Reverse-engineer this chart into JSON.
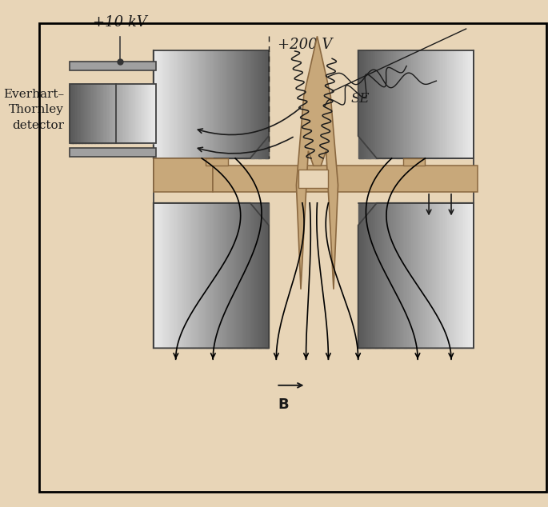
{
  "bg_color": "#e8d5b7",
  "gray_light": "#d0d0d0",
  "gray_mid": "#a0a0a0",
  "gray_dark": "#606060",
  "gray_darker": "#404040",
  "tan_fill": "#c8a87a",
  "tan_edge": "#8a6840",
  "black": "#1a1a1a",
  "label_10kv": "+10 kV",
  "label_200v": "+200 V",
  "label_SE": "SE",
  "label_B": "$\\mathbf{B}$",
  "label_detector": "Everhart–\nThornley\ndetector",
  "figw": 6.85,
  "figh": 6.34,
  "dpi": 100
}
